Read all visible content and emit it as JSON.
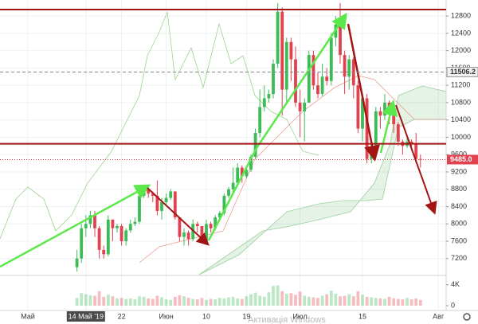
{
  "chart_data": {
    "type": "candlestick",
    "categories": [
      "Май",
      null,
      null,
      null,
      null,
      null,
      null,
      null,
      null,
      null,
      null,
      null,
      null,
      "14 Май '19",
      null,
      null,
      null,
      null,
      null,
      null,
      null,
      "22",
      null,
      null,
      null,
      null,
      null,
      null,
      null,
      null,
      null,
      "Июн",
      null,
      null,
      null,
      null,
      null,
      null,
      null,
      null,
      "10",
      null,
      null,
      null,
      null,
      null,
      null,
      null,
      null,
      "19",
      null,
      null,
      null,
      null,
      null,
      null,
      null,
      null,
      null,
      null,
      null,
      "Июл",
      null,
      null,
      null,
      null,
      null,
      null,
      null,
      null,
      null,
      null,
      null,
      null,
      null,
      "15",
      null,
      null,
      null,
      null,
      null,
      null,
      null,
      null,
      null,
      null,
      null,
      null,
      null,
      null,
      null,
      null,
      "Авг"
    ],
    "ohlc": [
      null,
      null,
      null,
      null,
      null,
      null,
      null,
      null,
      null,
      null,
      null,
      [
        7000,
        7400,
        6900,
        7200
      ],
      [
        7200,
        8000,
        7100,
        7900
      ],
      [
        7900,
        8200,
        7700,
        8000
      ],
      [
        8000,
        8300,
        7900,
        8200
      ],
      [
        8200,
        8300,
        7700,
        7900
      ],
      [
        7900,
        7950,
        7200,
        7400
      ],
      [
        7400,
        7500,
        7200,
        7300
      ],
      [
        7300,
        8200,
        7250,
        8100
      ],
      [
        8100,
        8100,
        7600,
        7900
      ],
      [
        7900,
        8000,
        7800,
        7950
      ],
      [
        7950,
        8000,
        7500,
        7600
      ],
      [
        7600,
        7900,
        7500,
        7850
      ],
      [
        7850,
        8100,
        7800,
        8000
      ],
      [
        8000,
        8150,
        7950,
        8050
      ],
      [
        8050,
        8700,
        8000,
        8650
      ],
      [
        8650,
        8900,
        8600,
        8800
      ],
      [
        8800,
        8850,
        8600,
        8700
      ],
      [
        8700,
        8750,
        8500,
        8650
      ],
      [
        8650,
        9000,
        8200,
        8300
      ],
      [
        8300,
        8600,
        8100,
        8500
      ],
      [
        8500,
        8700,
        8450,
        8600
      ],
      [
        8600,
        8800,
        8550,
        8750
      ],
      [
        8750,
        8750,
        8100,
        8150
      ],
      [
        8150,
        8150,
        7600,
        7700
      ],
      [
        7700,
        7900,
        7500,
        7800
      ],
      [
        7800,
        7850,
        7500,
        7650
      ],
      [
        7650,
        8100,
        7600,
        8000
      ],
      [
        8000,
        8050,
        7800,
        7950
      ],
      [
        7950,
        7950,
        7550,
        7600
      ],
      [
        7600,
        8100,
        7550,
        8000
      ],
      [
        8000,
        8050,
        7800,
        7900
      ],
      [
        7900,
        8200,
        7850,
        8150
      ],
      [
        8150,
        8300,
        8100,
        8250
      ],
      [
        8250,
        8700,
        8200,
        8650
      ],
      [
        8650,
        8850,
        8600,
        8800
      ],
      [
        8800,
        9300,
        8700,
        8950
      ],
      [
        8950,
        9400,
        8900,
        9300
      ],
      [
        9300,
        9350,
        8950,
        9100
      ],
      [
        9100,
        9300,
        9050,
        9250
      ],
      [
        9250,
        9600,
        9200,
        9550
      ],
      [
        9550,
        10200,
        9500,
        10100
      ],
      [
        10100,
        11100,
        10000,
        10700
      ],
      [
        10700,
        11200,
        10600,
        10900
      ],
      [
        10900,
        11100,
        10800,
        11000
      ],
      [
        11000,
        11800,
        10900,
        11700
      ],
      [
        11700,
        13100,
        11600,
        12900
      ],
      [
        12900,
        13000,
        10500,
        11100
      ],
      [
        11100,
        12300,
        10800,
        12200
      ],
      [
        12200,
        12300,
        11300,
        11800
      ],
      [
        11800,
        12100,
        10700,
        10800
      ],
      [
        10800,
        11100,
        10000,
        10600
      ],
      [
        10600,
        10900,
        9900,
        10800
      ],
      [
        10800,
        12000,
        10800,
        11900
      ],
      [
        11900,
        12000,
        11100,
        11200
      ],
      [
        11200,
        11500,
        10900,
        11000
      ],
      [
        11000,
        11700,
        10950,
        11400
      ],
      [
        11400,
        11600,
        11200,
        11300
      ],
      [
        11300,
        12400,
        11200,
        12300
      ],
      [
        12300,
        12800,
        12100,
        12600
      ],
      [
        12600,
        13100,
        11700,
        11900
      ],
      [
        11900,
        12000,
        11000,
        11400
      ],
      [
        11400,
        11900,
        11100,
        11800
      ],
      [
        11800,
        11850,
        10900,
        11200
      ],
      [
        11200,
        11300,
        10100,
        10200
      ],
      [
        10200,
        11000,
        9900,
        10900
      ],
      [
        10900,
        11000,
        9400,
        9500
      ],
      [
        9500,
        9900,
        9400,
        9700
      ],
      [
        9700,
        10700,
        9600,
        10600
      ],
      [
        10600,
        10700,
        10200,
        10500
      ],
      [
        10500,
        11000,
        10400,
        10800
      ],
      [
        10800,
        10850,
        10300,
        10600
      ],
      [
        10600,
        10650,
        10100,
        10300
      ],
      [
        10300,
        10350,
        9800,
        9900
      ],
      [
        9900,
        9950,
        9600,
        9800
      ],
      [
        9800,
        10000,
        9750,
        9900
      ],
      [
        9900,
        9950,
        9700,
        9850
      ],
      [
        9850,
        10100,
        9400,
        9500
      ],
      [
        9500,
        9600,
        9300,
        9485
      ],
      null,
      null,
      null,
      null
    ],
    "volume": [
      null,
      null,
      null,
      null,
      null,
      null,
      null,
      null,
      null,
      null,
      null,
      1500,
      2400,
      2200,
      2000,
      1900,
      2800,
      1700,
      2100,
      1800,
      1400,
      1500,
      1300,
      1400,
      1200,
      1800,
      1700,
      1400,
      1300,
      1900,
      1600,
      1200,
      1100,
      1700,
      2000,
      1800,
      1500,
      1300,
      1200,
      1500,
      1100,
      1300,
      1200,
      1500,
      1400,
      1600,
      1700,
      1400,
      1300,
      1800,
      2200,
      2500,
      1900,
      1700,
      2600,
      3800,
      3900,
      2800,
      2300,
      2400,
      2100,
      2700,
      1900,
      1700,
      1600,
      1500,
      1900,
      2200,
      2900,
      2300,
      1800,
      1900,
      2200,
      1800,
      2800,
      2100,
      1700,
      1600,
      1500,
      1400,
      1300,
      1700,
      1400,
      1300,
      1200,
      1500,
      1200,
      1400,
      1100,
      null,
      null,
      null,
      null
    ],
    "ylim": [
      6810,
      13170
    ],
    "yticks": [
      7200,
      7600,
      8000,
      8400,
      8800,
      9200,
      9600,
      10000,
      10400,
      10800,
      11200,
      11600,
      12000,
      12400,
      12800
    ],
    "volume_ylim": [
      0,
      5500
    ],
    "volume_ticks": [
      {
        "value": 4000,
        "label": "4K"
      },
      0
    ],
    "levels": [
      12950,
      9850
    ],
    "level_color": "#a31515",
    "marker_price": 11506.2,
    "last_price": {
      "value": 9485,
      "label": "9485.0"
    },
    "up_color": "#3dbb57",
    "down_color": "#e0424f",
    "grid": true,
    "watermark": "Активація Windows"
  }
}
